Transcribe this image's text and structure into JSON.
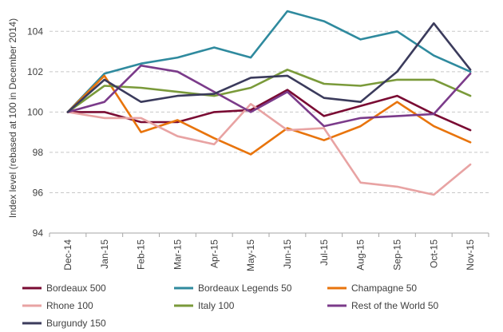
{
  "chart_data": {
    "type": "line",
    "title": "",
    "xlabel": "",
    "ylabel": "Index level (rebased at 100 in December 2014)",
    "ylim": [
      94,
      105
    ],
    "yticks": [
      94,
      96,
      98,
      100,
      102,
      104
    ],
    "grid": "horizontal dashed",
    "legend_position": "bottom",
    "categories": [
      "Dec-14",
      "Jan-15",
      "Feb-15",
      "Mar-15",
      "Apr-15",
      "May-15",
      "Jun-15",
      "Jul-15",
      "Aug-15",
      "Sep-15",
      "Oct-15",
      "Nov-15"
    ],
    "series": [
      {
        "name": "Bordeaux 500",
        "color": "#7a0b33",
        "values": [
          100,
          100.0,
          99.5,
          99.5,
          100.0,
          100.1,
          101.1,
          99.8,
          100.3,
          100.8,
          99.9,
          99.1
        ]
      },
      {
        "name": "Bordeaux Legends 50",
        "color": "#2f8a9e",
        "values": [
          100,
          101.9,
          102.4,
          102.7,
          103.2,
          102.7,
          105.0,
          104.5,
          103.6,
          104.0,
          102.8,
          102.0
        ]
      },
      {
        "name": "Champagne 50",
        "color": "#e8740c",
        "values": [
          100,
          101.8,
          99.0,
          99.6,
          98.7,
          97.9,
          99.2,
          98.6,
          99.3,
          100.5,
          99.3,
          98.5
        ]
      },
      {
        "name": "Rhone 100",
        "color": "#e8a3a3",
        "values": [
          100,
          99.7,
          99.7,
          98.8,
          98.4,
          100.4,
          99.1,
          99.2,
          96.5,
          96.3,
          95.9,
          97.4
        ]
      },
      {
        "name": "Italy 100",
        "color": "#7a9a3a",
        "values": [
          100,
          101.3,
          101.2,
          101.0,
          100.8,
          101.2,
          102.1,
          101.4,
          101.3,
          101.6,
          101.6,
          100.8
        ]
      },
      {
        "name": "Rest of the World 50",
        "color": "#7b3b8a",
        "values": [
          100,
          100.5,
          102.3,
          102.0,
          101.0,
          100.0,
          101.0,
          99.3,
          99.7,
          99.8,
          99.9,
          101.9
        ]
      },
      {
        "name": "Burgundy 150",
        "color": "#3b3b5c",
        "values": [
          100,
          101.6,
          100.5,
          100.8,
          100.9,
          101.7,
          101.8,
          100.7,
          100.5,
          102.0,
          104.4,
          102.1
        ]
      }
    ]
  }
}
